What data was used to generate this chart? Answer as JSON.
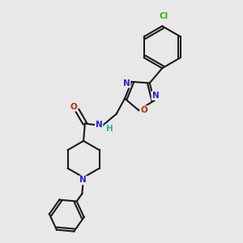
{
  "bg_color": "#e8e8e8",
  "bond_color": "#1a1a1a",
  "N_color": "#2020ff",
  "O_color": "#cc2200",
  "Cl_color": "#3cb000",
  "H_color": "#2ab0b0",
  "bond_width": 1.5,
  "figsize": [
    3.0,
    3.0
  ],
  "dpi": 100,
  "xlim": [
    0,
    10
  ],
  "ylim": [
    0,
    10
  ]
}
